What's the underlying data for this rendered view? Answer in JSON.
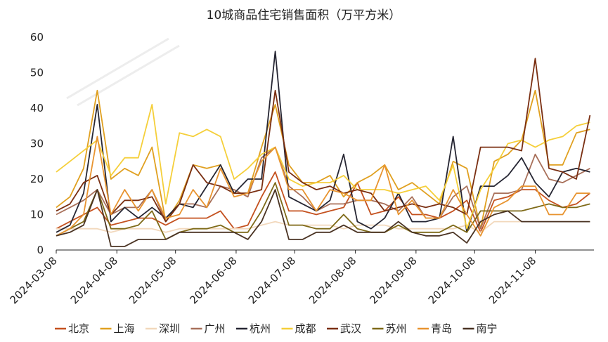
{
  "chart_data": {
    "type": "line",
    "title": "10城商品住宅销售面积（万平方米）",
    "xlabel": "",
    "ylabel": "",
    "ylim": [
      0,
      60
    ],
    "yticks": [
      0,
      10,
      20,
      30,
      40,
      50,
      60
    ],
    "xrange": [
      "2024-03-08",
      "2024-12-08"
    ],
    "xticks": [
      "2024-03-08",
      "2024-04-08",
      "2024-05-08",
      "2024-06-08",
      "2024-07-08",
      "2024-08-08",
      "2024-09-08",
      "2024-10-08",
      "2024-11-08"
    ],
    "grid": false,
    "legend_position": "bottom",
    "x": [
      "2024-03-08",
      "2024-03-15",
      "2024-03-22",
      "2024-03-29",
      "2024-04-05",
      "2024-04-12",
      "2024-04-19",
      "2024-04-26",
      "2024-05-03",
      "2024-05-10",
      "2024-05-17",
      "2024-05-24",
      "2024-05-31",
      "2024-06-07",
      "2024-06-14",
      "2024-06-21",
      "2024-06-28",
      "2024-07-05",
      "2024-07-12",
      "2024-07-19",
      "2024-07-26",
      "2024-08-02",
      "2024-08-09",
      "2024-08-16",
      "2024-08-23",
      "2024-08-30",
      "2024-09-06",
      "2024-09-13",
      "2024-09-20",
      "2024-09-27",
      "2024-10-04",
      "2024-10-11",
      "2024-10-18",
      "2024-10-25",
      "2024-11-01",
      "2024-11-08",
      "2024-11-15",
      "2024-11-22",
      "2024-11-29",
      "2024-12-06"
    ],
    "series": [
      {
        "name": "北京",
        "color": "#C4511F",
        "values": [
          6,
          8,
          10,
          12,
          7,
          8,
          9,
          9,
          7,
          9,
          9,
          9,
          11,
          6,
          7,
          15,
          22,
          11,
          11,
          10,
          11,
          12,
          19,
          10,
          11,
          15,
          10,
          10,
          9,
          11,
          14,
          5,
          14,
          15,
          17,
          17,
          14,
          12,
          13,
          16
        ]
      },
      {
        "name": "上海",
        "color": "#E0A020",
        "values": [
          12,
          15,
          23,
          45,
          20,
          23,
          21,
          29,
          8,
          14,
          24,
          23,
          24,
          16,
          16,
          29,
          41,
          24,
          19,
          19,
          21,
          15,
          19,
          21,
          24,
          17,
          19,
          16,
          13,
          25,
          23,
          6,
          25,
          27,
          31,
          45,
          24,
          24,
          33,
          34
        ]
      },
      {
        "name": "深圳",
        "color": "#F2D8BC",
        "values": [
          6,
          6,
          6,
          6,
          5,
          6,
          6,
          6,
          5,
          6,
          6,
          6,
          6,
          6,
          6,
          7,
          8,
          7,
          7,
          7,
          7,
          6,
          7,
          7,
          7,
          6,
          6,
          6,
          6,
          6,
          7,
          5,
          8,
          8,
          8,
          8,
          8,
          8,
          8,
          8
        ]
      },
      {
        "name": "广州",
        "color": "#A8705A",
        "values": [
          10,
          12,
          14,
          17,
          10,
          12,
          12,
          17,
          8,
          13,
          13,
          12,
          18,
          17,
          15,
          26,
          29,
          18,
          15,
          11,
          13,
          13,
          14,
          14,
          13,
          11,
          15,
          9,
          9,
          15,
          18,
          6,
          16,
          16,
          17,
          27,
          20,
          19,
          21,
          23
        ]
      },
      {
        "name": "杭州",
        "color": "#262633",
        "values": [
          5,
          7,
          16,
          41,
          8,
          12,
          9,
          12,
          9,
          13,
          12,
          18,
          24,
          16,
          20,
          20,
          56,
          15,
          13,
          11,
          14,
          27,
          8,
          6,
          9,
          16,
          8,
          8,
          9,
          32,
          5,
          18,
          18,
          21,
          26,
          19,
          15,
          22,
          23,
          22
        ]
      },
      {
        "name": "成都",
        "color": "#F5CF3A",
        "values": [
          22,
          25,
          28,
          31,
          21,
          26,
          26,
          41,
          13,
          33,
          32,
          34,
          32,
          20,
          23,
          27,
          29,
          20,
          18,
          19,
          19,
          21,
          17,
          17,
          17,
          16,
          17,
          18,
          14,
          24,
          6,
          17,
          23,
          30,
          31,
          29,
          31,
          32,
          35,
          36
        ]
      },
      {
        "name": "武汉",
        "color": "#7A2F12",
        "values": [
          11,
          13,
          19,
          21,
          10,
          14,
          14,
          15,
          8,
          13,
          24,
          19,
          18,
          16,
          16,
          17,
          45,
          22,
          19,
          17,
          18,
          16,
          17,
          16,
          11,
          12,
          13,
          12,
          13,
          12,
          10,
          29,
          29,
          29,
          28,
          54,
          23,
          22,
          20,
          38
        ]
      },
      {
        "name": "苏州",
        "color": "#7E6A18",
        "values": [
          4,
          6,
          8,
          17,
          6,
          6,
          7,
          11,
          3,
          5,
          6,
          6,
          7,
          5,
          5,
          11,
          19,
          7,
          7,
          6,
          6,
          10,
          6,
          5,
          5,
          7,
          5,
          5,
          5,
          7,
          5,
          11,
          11,
          11,
          11,
          12,
          13,
          12,
          12,
          13
        ]
      },
      {
        "name": "青岛",
        "color": "#E89430",
        "values": [
          4,
          6,
          10,
          32,
          10,
          17,
          11,
          17,
          9,
          10,
          17,
          12,
          23,
          15,
          16,
          25,
          29,
          17,
          17,
          11,
          17,
          16,
          14,
          14,
          24,
          10,
          14,
          9,
          9,
          17,
          10,
          4,
          12,
          14,
          18,
          18,
          10,
          10,
          16,
          16
        ]
      },
      {
        "name": "南宁",
        "color": "#4A3323",
        "values": [
          4,
          5,
          7,
          17,
          1,
          1,
          3,
          3,
          3,
          5,
          5,
          5,
          5,
          5,
          3,
          8,
          17,
          3,
          3,
          5,
          5,
          7,
          5,
          5,
          5,
          8,
          5,
          4,
          4,
          5,
          2,
          8,
          10,
          11,
          8,
          8,
          8,
          8,
          8,
          8
        ]
      }
    ]
  }
}
